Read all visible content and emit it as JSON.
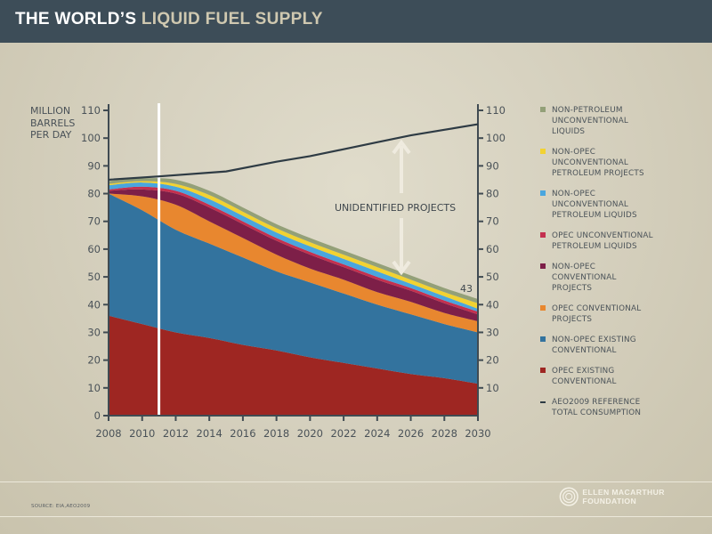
{
  "header": {
    "title_part1": "THE WORLD’S ",
    "title_part2": "LIQUID FUEL SUPPLY"
  },
  "y_axis_label": "MILLION BARRELS PER DAY",
  "annotations": {
    "unidentified": "UNIDENTIFIED PROJECTS",
    "end_value": "43"
  },
  "footer": {
    "source": "SOURCE: EIA,AEO2009",
    "logo_text": "ELLEN MACARTHUR FOUNDATION"
  },
  "chart_data": {
    "type": "area",
    "title": "THE WORLD’S LIQUID FUEL SUPPLY",
    "ylabel": "MILLION BARRELS PER DAY",
    "xlabel": "",
    "stacked": true,
    "x": [
      2008,
      2010,
      2012,
      2014,
      2016,
      2018,
      2020,
      2022,
      2024,
      2026,
      2028,
      2030
    ],
    "xlim": [
      2008,
      2030
    ],
    "ylim": [
      0,
      110
    ],
    "x_ticks": [
      2008,
      2010,
      2012,
      2014,
      2016,
      2018,
      2020,
      2022,
      2024,
      2026,
      2028,
      2030
    ],
    "y_ticks_left": [
      0,
      10,
      20,
      30,
      40,
      50,
      60,
      70,
      80,
      90,
      100,
      110
    ],
    "y_ticks_right": [
      10,
      20,
      30,
      40,
      50,
      60,
      70,
      80,
      90,
      100,
      110
    ],
    "grid": false,
    "legend_position": "right",
    "current_year_marker": 2011,
    "series": [
      {
        "name": "OPEC EXISTING CONVENTIONAL",
        "color": "#9e2622",
        "values": [
          36,
          33,
          30,
          28,
          25.5,
          23.5,
          21,
          19,
          17,
          15,
          13.5,
          11.5
        ]
      },
      {
        "name": "NON-OPEC EXISTING CONVENTIONAL",
        "color": "#33739e",
        "values": [
          44,
          41,
          37,
          34,
          31.5,
          28.5,
          27,
          25,
          23,
          21.5,
          19.5,
          18.5
        ]
      },
      {
        "name": "OPEC CONVENTIONAL PROJECTS",
        "color": "#e8872f",
        "values": [
          0,
          5,
          9,
          8,
          7,
          6,
          5,
          5,
          4.5,
          4.5,
          4,
          4
        ]
      },
      {
        "name": "NON-OPEC CONVENTIONAL PROJECTS",
        "color": "#7d1f48",
        "values": [
          1,
          2.5,
          4,
          5,
          5,
          5,
          5,
          4.5,
          4.5,
          4,
          3.5,
          2.5
        ]
      },
      {
        "name": "OPEC UNCONVENTIONAL PETROLEUM LIQUIDS",
        "color": "#c4304f",
        "values": [
          0.5,
          1,
          1,
          1,
          1,
          1,
          1,
          1,
          1,
          1,
          1,
          1
        ]
      },
      {
        "name": "NON-OPEC UNCONVENTIONAL PETROLEUM LIQUIDS",
        "color": "#4aa6de",
        "values": [
          1.5,
          1.5,
          1.5,
          2,
          2,
          2,
          2,
          2,
          2,
          1.5,
          1.5,
          1
        ]
      },
      {
        "name": "NON-OPEC UNCONVENTIONAL PETROLEUM PROJECTS",
        "color": "#f2d232",
        "values": [
          0.5,
          0.5,
          1,
          1.5,
          1.5,
          1.5,
          1.5,
          1.5,
          1.5,
          1.5,
          1.5,
          2
        ]
      },
      {
        "name": "NON-PETROLEUM UNCONVENTIONAL LIQUIDS",
        "color": "#93a078",
        "values": [
          1,
          1,
          1.5,
          1.5,
          1.5,
          1.5,
          1.5,
          1.5,
          1.5,
          1.5,
          1.5,
          1.5
        ]
      }
    ],
    "reference_line": {
      "name": "AEO2009 REFERENCE TOTAL CONSUMPTION",
      "color": "#2e3b44",
      "x": [
        2008,
        2011,
        2015,
        2018,
        2020,
        2022,
        2024,
        2026,
        2028,
        2030
      ],
      "values": [
        85,
        86.2,
        88,
        91.5,
        93.5,
        96,
        98.5,
        101,
        103,
        105
      ]
    },
    "legend": [
      {
        "label": "NON-PETROLEUM UNCONVENTIONAL LIQUIDS",
        "color": "#93a078",
        "kind": "square"
      },
      {
        "label": "NON-OPEC UNCONVENTIONAL PETROLEUM PROJECTS",
        "color": "#f2d232",
        "kind": "square"
      },
      {
        "label": "NON-OPEC UNCONVENTIONAL PETROLEUM LIQUIDS",
        "color": "#4aa6de",
        "kind": "square"
      },
      {
        "label": "OPEC UNCONVENTIONAL PETROLEUM LIQUIDS",
        "color": "#c4304f",
        "kind": "square"
      },
      {
        "label": "NON-OPEC CONVENTIONAL PROJECTS",
        "color": "#7d1f48",
        "kind": "square"
      },
      {
        "label": "OPEC CONVENTIONAL PROJECTS",
        "color": "#e8872f",
        "kind": "square"
      },
      {
        "label": "NON-OPEC EXISTING CONVENTIONAL",
        "color": "#33739e",
        "kind": "square"
      },
      {
        "label": "OPEC EXISTING CONVENTIONAL",
        "color": "#9e2622",
        "kind": "square"
      },
      {
        "label": "AEO2009 REFERENCE TOTAL CONSUMPTION",
        "color": "#2e3b44",
        "kind": "line"
      }
    ]
  }
}
